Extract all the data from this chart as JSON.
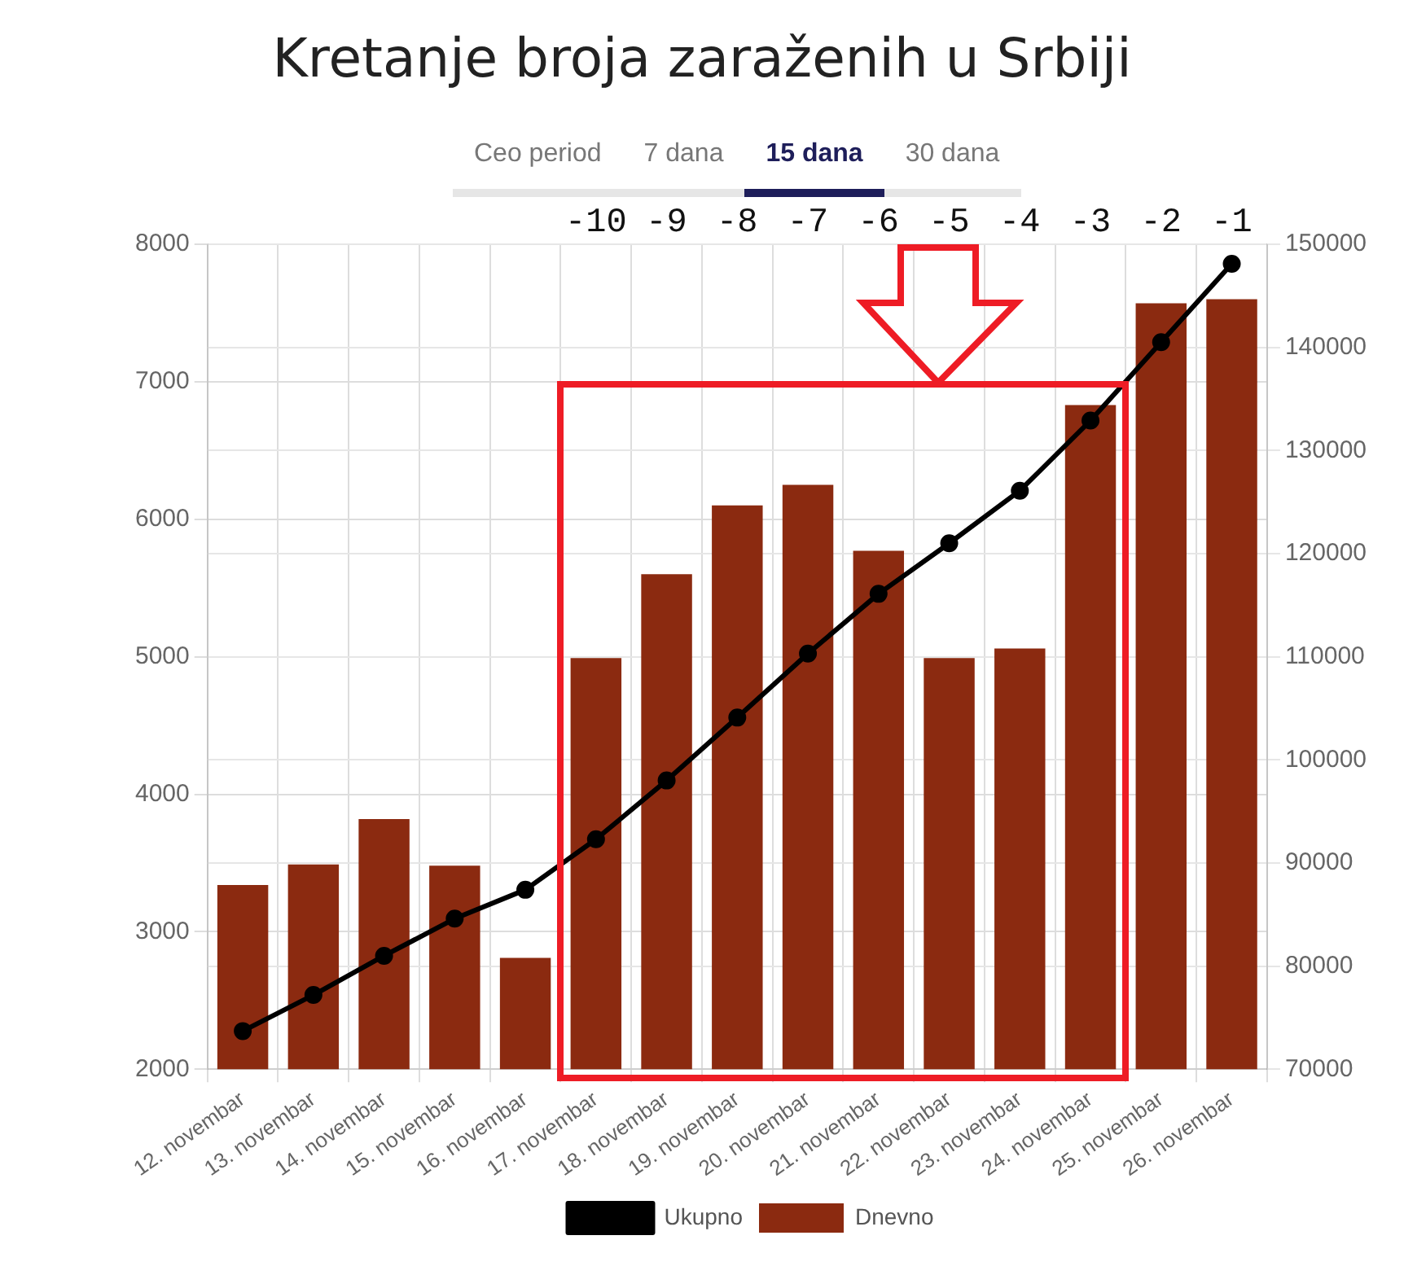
{
  "chart_data": {
    "type": "bar",
    "title": "Kretanje broja zaraženih u Srbiji",
    "categories": [
      "12. novembar",
      "13. novembar",
      "14. novembar",
      "15. novembar",
      "16. novembar",
      "17. novembar",
      "18. novembar",
      "19. novembar",
      "20. novembar",
      "21. novembar",
      "22. novembar",
      "23. novembar",
      "24. novembar",
      "25. novembar",
      "26. novembar"
    ],
    "series": [
      {
        "name": "Ukupno",
        "type": "line",
        "axis": "y2",
        "color": "#000000",
        "values": [
          73700,
          77200,
          81000,
          84600,
          87400,
          92300,
          98000,
          104100,
          110300,
          116100,
          121000,
          126100,
          132900,
          140500,
          148100
        ]
      },
      {
        "name": "Dnevno",
        "color": "#8b2a10",
        "values": [
          3340,
          3490,
          3820,
          3480,
          2810,
          4990,
          5600,
          6100,
          6250,
          5770,
          4990,
          5060,
          6830,
          7570,
          7600
        ]
      }
    ],
    "ylim": [
      2000,
      8000
    ],
    "yticks": [
      2000,
      3000,
      4000,
      5000,
      6000,
      7000,
      8000
    ],
    "y2lim": [
      70000,
      150000
    ],
    "y2ticks": [
      70000,
      80000,
      90000,
      100000,
      110000,
      120000,
      130000,
      140000,
      150000
    ],
    "grid": true,
    "legend": "bottom",
    "marker": "circle",
    "annotations": [
      "Ceo period",
      "7 dana",
      "15 dana",
      "30 dana",
      "-10",
      "-9",
      "-8",
      "-7",
      "-6",
      "-5",
      "-4",
      "-3",
      "-2",
      "-1"
    ]
  }
}
